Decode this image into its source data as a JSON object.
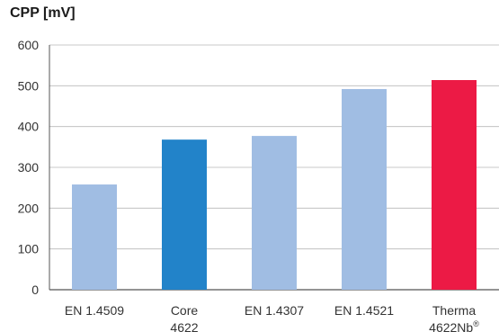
{
  "chart_data": {
    "type": "bar",
    "ylabel": "CPP [mV]",
    "ylim": [
      0,
      600
    ],
    "yticks": [
      0,
      100,
      200,
      300,
      400,
      500,
      600
    ],
    "grid": true,
    "categories": [
      [
        "EN 1.4509"
      ],
      [
        "Core",
        "4622"
      ],
      [
        "EN 1.4307"
      ],
      [
        "EN 1.4521"
      ],
      [
        "Therma",
        "4622Nb®"
      ]
    ],
    "values": [
      258,
      368,
      377,
      492,
      514
    ],
    "colors": [
      "#a0bde3",
      "#2283c9",
      "#a0bde3",
      "#a0bde3",
      "#ec1a45"
    ]
  },
  "colors": {
    "grid": "#b8b8b8",
    "axis": "#555555"
  }
}
